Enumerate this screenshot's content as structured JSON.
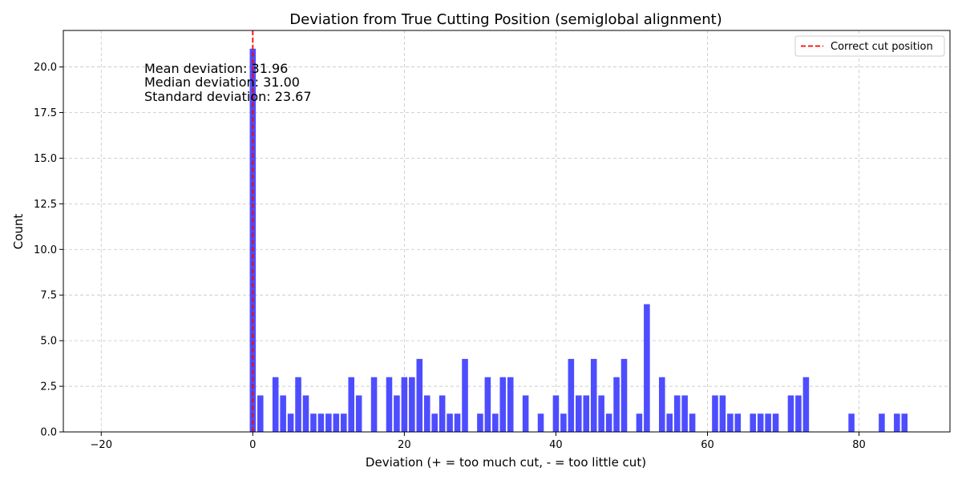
{
  "chart_data": {
    "type": "bar",
    "title": "Deviation from True Cutting Position (semiglobal alignment)",
    "xlabel": "Deviation (+ = too much cut, - = too little cut)",
    "ylabel": "Count",
    "xlim": [
      -25,
      92
    ],
    "ylim": [
      0,
      22
    ],
    "x_ticks": [
      -20,
      0,
      20,
      40,
      60,
      80
    ],
    "y_ticks": [
      0.0,
      2.5,
      5.0,
      7.5,
      10.0,
      12.5,
      15.0,
      17.5,
      20.0
    ],
    "x_tick_labels": [
      "−20",
      "0",
      "20",
      "40",
      "60",
      "80"
    ],
    "y_tick_labels": [
      "0.0",
      "2.5",
      "5.0",
      "7.5",
      "10.0",
      "12.5",
      "15.0",
      "17.5",
      "20.0"
    ],
    "grid": true,
    "bar_color": "#4d4dff",
    "series": [
      {
        "x": [
          0,
          1,
          3,
          4,
          5,
          6,
          7,
          8,
          9,
          10,
          11,
          12,
          13,
          14,
          16,
          18,
          19,
          20,
          21,
          22,
          23,
          24,
          25,
          26,
          27,
          28,
          30,
          31,
          32,
          33,
          34,
          36,
          38,
          40,
          41,
          42,
          43,
          44,
          45,
          46,
          47,
          48,
          49,
          51,
          52,
          54,
          55,
          56,
          57,
          58,
          61,
          62,
          63,
          64,
          66,
          67,
          68,
          69,
          71,
          72,
          73,
          79,
          83,
          85,
          86
        ],
        "values": [
          21,
          2,
          3,
          2,
          1,
          3,
          2,
          1,
          1,
          1,
          1,
          1,
          3,
          2,
          3,
          3,
          2,
          3,
          3,
          4,
          2,
          1,
          2,
          1,
          1,
          4,
          1,
          3,
          1,
          3,
          3,
          2,
          1,
          2,
          1,
          4,
          2,
          2,
          4,
          2,
          1,
          3,
          4,
          1,
          7,
          3,
          1,
          2,
          2,
          1,
          2,
          2,
          1,
          1,
          1,
          1,
          1,
          1,
          2,
          2,
          3,
          1,
          1,
          1,
          1
        ]
      }
    ],
    "reference_line": {
      "x": 0,
      "color": "#ff0000",
      "label": "Correct cut position"
    },
    "legend": {
      "position": "top-right",
      "entries": [
        "Correct cut position"
      ]
    },
    "annotations": [
      "Mean deviation: 31.96",
      "Median deviation: 31.00",
      "Standard deviation: 23.67"
    ]
  }
}
